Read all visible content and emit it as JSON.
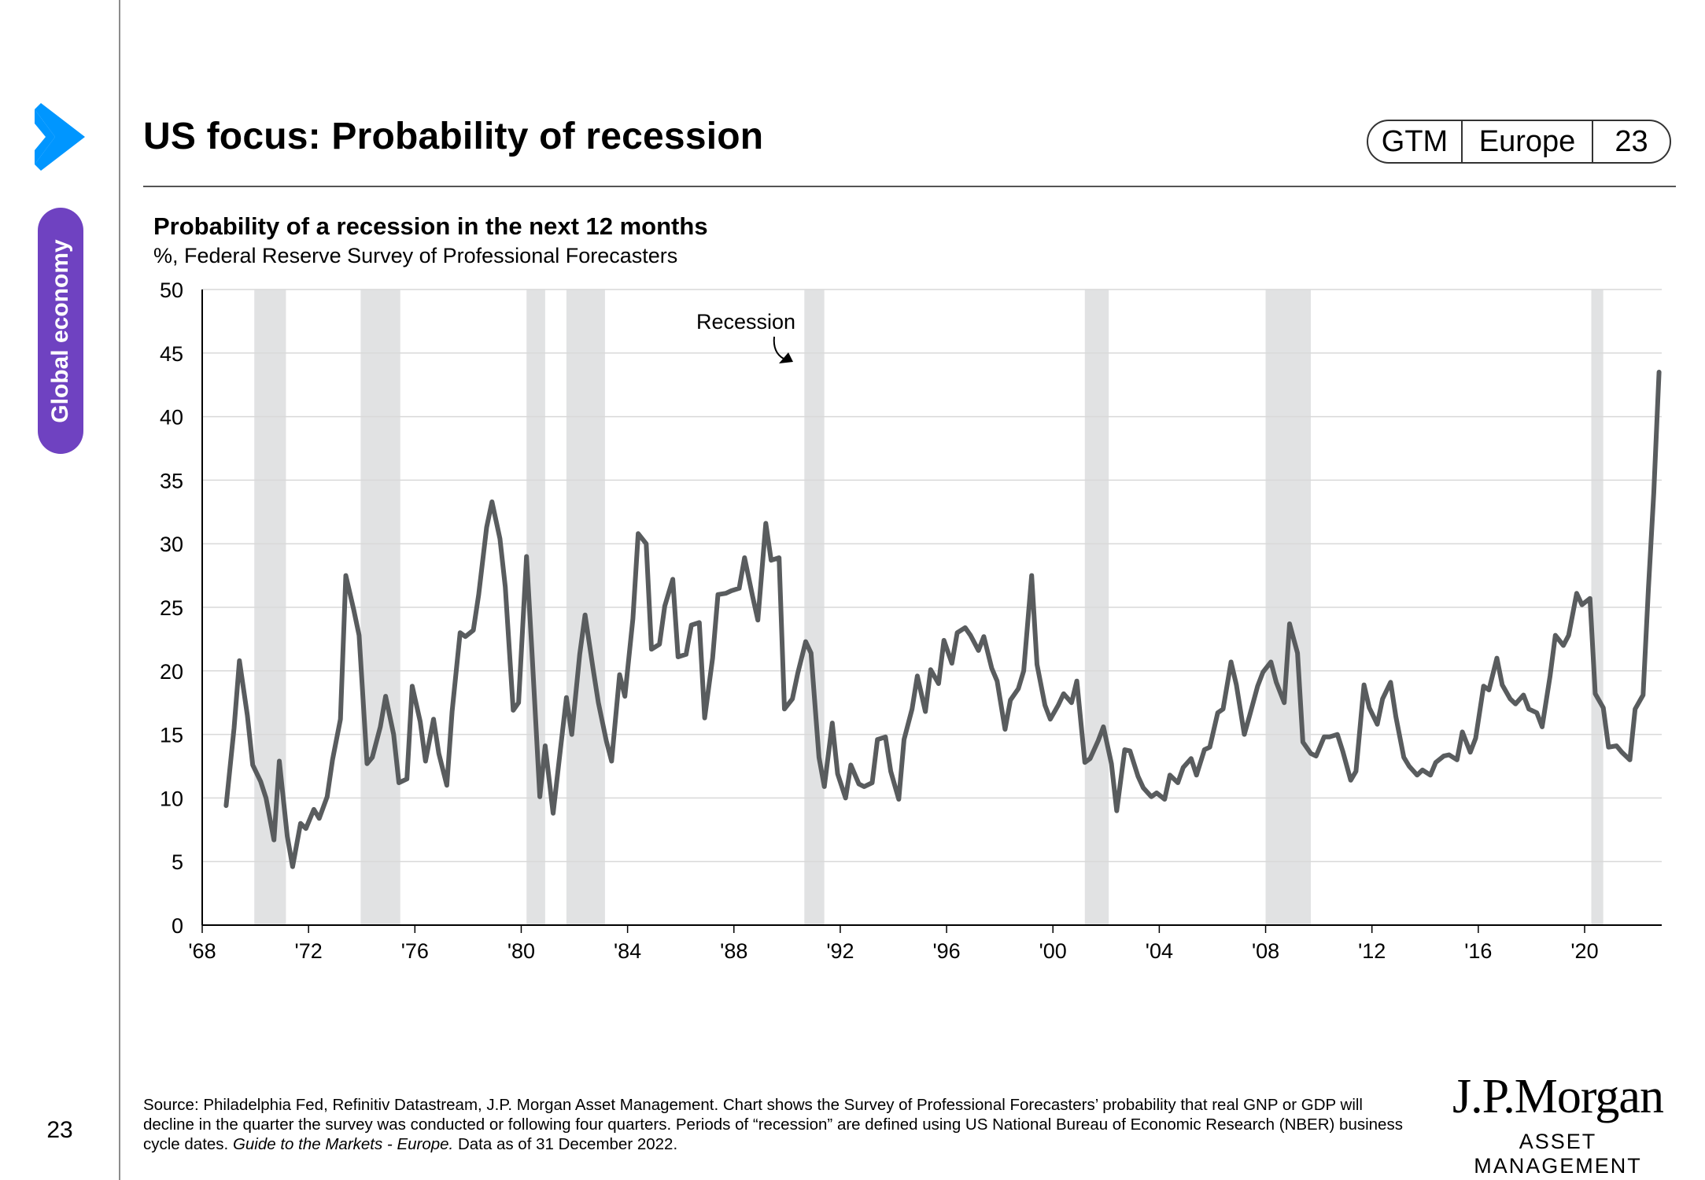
{
  "header": {
    "title": "US focus: Probability of recession"
  },
  "badge": {
    "gtm": "GTM",
    "region": "Europe",
    "page": "23"
  },
  "sidebar": {
    "section_label": "Global economy",
    "page_number": "23"
  },
  "colors": {
    "accent_blue": "#0096ff",
    "section_purple": "#6f42c1",
    "series": "#595c5e",
    "recession_band": "#e1e2e3"
  },
  "icons": {
    "chevron": "chevron-right-icon"
  },
  "chart_data": {
    "type": "line",
    "title": "Probability of a recession in the next 12 months",
    "subtitle": "%, Federal Reserve Survey of Professional Forecasters",
    "xlim": [
      1968.0,
      2022.9
    ],
    "ylim": [
      0,
      50
    ],
    "yticks": [
      0,
      5,
      10,
      15,
      20,
      25,
      30,
      35,
      40,
      45,
      50
    ],
    "xticks": [
      {
        "value": 1968,
        "label": "'68"
      },
      {
        "value": 1972,
        "label": "'72"
      },
      {
        "value": 1976,
        "label": "'76"
      },
      {
        "value": 1980,
        "label": "'80"
      },
      {
        "value": 1984,
        "label": "'84"
      },
      {
        "value": 1988,
        "label": "'88"
      },
      {
        "value": 1992,
        "label": "'92"
      },
      {
        "value": 1996,
        "label": "'96"
      },
      {
        "value": 2000,
        "label": "'00"
      },
      {
        "value": 2004,
        "label": "'04"
      },
      {
        "value": 2008,
        "label": "'08"
      },
      {
        "value": 2012,
        "label": "'12"
      },
      {
        "value": 2016,
        "label": "'16"
      },
      {
        "value": 2020,
        "label": "'20"
      }
    ],
    "grid": "horizontal",
    "recession_label": "Recession",
    "recessions": [
      [
        1969.96,
        1971.15
      ],
      [
        1973.96,
        1975.45
      ],
      [
        1980.2,
        1980.9
      ],
      [
        1981.7,
        1983.15
      ],
      [
        1990.65,
        1991.4
      ],
      [
        2001.2,
        2002.1
      ],
      [
        2008.0,
        2009.7
      ],
      [
        2020.25,
        2020.7
      ]
    ],
    "series": [
      {
        "points": [
          [
            1968.9,
            9.4
          ],
          [
            1969.2,
            15.5
          ],
          [
            1969.4,
            20.8
          ],
          [
            1969.7,
            16.5
          ],
          [
            1969.9,
            12.6
          ],
          [
            1970.2,
            11.3
          ],
          [
            1970.4,
            10.0
          ],
          [
            1970.7,
            6.7
          ],
          [
            1970.9,
            12.9
          ],
          [
            1971.2,
            7.0
          ],
          [
            1971.4,
            4.6
          ],
          [
            1971.7,
            8.0
          ],
          [
            1971.9,
            7.6
          ],
          [
            1972.2,
            9.1
          ],
          [
            1972.4,
            8.4
          ],
          [
            1972.7,
            10.1
          ],
          [
            1972.9,
            13.0
          ],
          [
            1973.2,
            16.2
          ],
          [
            1973.4,
            27.5
          ],
          [
            1973.7,
            24.8
          ],
          [
            1973.9,
            22.8
          ],
          [
            1974.2,
            12.7
          ],
          [
            1974.4,
            13.2
          ],
          [
            1974.7,
            15.6
          ],
          [
            1974.9,
            18.0
          ],
          [
            1975.2,
            15.0
          ],
          [
            1975.4,
            11.2
          ],
          [
            1975.7,
            11.5
          ],
          [
            1975.9,
            18.8
          ],
          [
            1976.2,
            16.0
          ],
          [
            1976.4,
            12.9
          ],
          [
            1976.7,
            16.2
          ],
          [
            1976.9,
            13.5
          ],
          [
            1977.2,
            11.0
          ],
          [
            1977.4,
            16.8
          ],
          [
            1977.7,
            23.0
          ],
          [
            1977.9,
            22.7
          ],
          [
            1978.2,
            23.2
          ],
          [
            1978.4,
            26.0
          ],
          [
            1978.7,
            31.3
          ],
          [
            1978.9,
            33.3
          ],
          [
            1979.2,
            30.4
          ],
          [
            1979.4,
            26.6
          ],
          [
            1979.7,
            16.9
          ],
          [
            1979.9,
            17.5
          ],
          [
            1980.2,
            29.0
          ],
          [
            1980.4,
            21.6
          ],
          [
            1980.7,
            10.1
          ],
          [
            1980.9,
            14.1
          ],
          [
            1981.2,
            8.8
          ],
          [
            1981.4,
            12.5
          ],
          [
            1981.7,
            17.9
          ],
          [
            1981.9,
            15.0
          ],
          [
            1982.2,
            21.3
          ],
          [
            1982.4,
            24.4
          ],
          [
            1982.7,
            20.2
          ],
          [
            1982.9,
            17.5
          ],
          [
            1983.2,
            14.5
          ],
          [
            1983.4,
            12.9
          ],
          [
            1983.7,
            19.7
          ],
          [
            1983.9,
            18.0
          ],
          [
            1984.2,
            24.1
          ],
          [
            1984.4,
            30.8
          ],
          [
            1984.7,
            30.0
          ],
          [
            1984.9,
            21.7
          ],
          [
            1985.2,
            22.1
          ],
          [
            1985.4,
            25.1
          ],
          [
            1985.7,
            27.2
          ],
          [
            1985.9,
            21.1
          ],
          [
            1986.2,
            21.3
          ],
          [
            1986.4,
            23.6
          ],
          [
            1986.7,
            23.8
          ],
          [
            1986.9,
            16.3
          ],
          [
            1987.2,
            21.0
          ],
          [
            1987.4,
            26.0
          ],
          [
            1987.7,
            26.1
          ],
          [
            1987.9,
            26.3
          ],
          [
            1988.2,
            26.5
          ],
          [
            1988.4,
            28.9
          ],
          [
            1988.7,
            25.9
          ],
          [
            1988.9,
            24.0
          ],
          [
            1989.2,
            31.6
          ],
          [
            1989.4,
            28.7
          ],
          [
            1989.7,
            28.9
          ],
          [
            1989.9,
            17.0
          ],
          [
            1990.2,
            17.8
          ],
          [
            1990.4,
            19.8
          ],
          [
            1990.7,
            22.3
          ],
          [
            1990.9,
            21.4
          ],
          [
            1991.2,
            13.2
          ],
          [
            1991.4,
            10.9
          ],
          [
            1991.7,
            15.9
          ],
          [
            1991.9,
            11.9
          ],
          [
            1992.2,
            10.0
          ],
          [
            1992.4,
            12.6
          ],
          [
            1992.7,
            11.1
          ],
          [
            1992.9,
            10.9
          ],
          [
            1993.2,
            11.2
          ],
          [
            1993.4,
            14.6
          ],
          [
            1993.7,
            14.8
          ],
          [
            1993.9,
            12.1
          ],
          [
            1994.2,
            9.9
          ],
          [
            1994.4,
            14.6
          ],
          [
            1994.7,
            17.0
          ],
          [
            1994.9,
            19.6
          ],
          [
            1995.2,
            16.8
          ],
          [
            1995.4,
            20.1
          ],
          [
            1995.7,
            19.0
          ],
          [
            1995.9,
            22.4
          ],
          [
            1996.2,
            20.6
          ],
          [
            1996.4,
            23.0
          ],
          [
            1996.7,
            23.4
          ],
          [
            1996.9,
            22.8
          ],
          [
            1997.2,
            21.6
          ],
          [
            1997.4,
            22.7
          ],
          [
            1997.7,
            20.2
          ],
          [
            1997.9,
            19.2
          ],
          [
            1998.2,
            15.4
          ],
          [
            1998.4,
            17.7
          ],
          [
            1998.7,
            18.6
          ],
          [
            1998.9,
            20.0
          ],
          [
            1999.2,
            27.5
          ],
          [
            1999.4,
            20.5
          ],
          [
            1999.7,
            17.3
          ],
          [
            1999.9,
            16.2
          ],
          [
            2000.2,
            17.3
          ],
          [
            2000.4,
            18.2
          ],
          [
            2000.7,
            17.5
          ],
          [
            2000.9,
            19.2
          ],
          [
            2001.2,
            12.8
          ],
          [
            2001.4,
            13.1
          ],
          [
            2001.7,
            14.5
          ],
          [
            2001.9,
            15.6
          ],
          [
            2002.2,
            12.7
          ],
          [
            2002.4,
            9.0
          ],
          [
            2002.7,
            13.8
          ],
          [
            2002.9,
            13.7
          ],
          [
            2003.2,
            11.7
          ],
          [
            2003.4,
            10.8
          ],
          [
            2003.7,
            10.1
          ],
          [
            2003.9,
            10.4
          ],
          [
            2004.2,
            9.9
          ],
          [
            2004.4,
            11.8
          ],
          [
            2004.7,
            11.2
          ],
          [
            2004.9,
            12.4
          ],
          [
            2005.2,
            13.1
          ],
          [
            2005.4,
            11.8
          ],
          [
            2005.7,
            13.8
          ],
          [
            2005.9,
            14.0
          ],
          [
            2006.2,
            16.7
          ],
          [
            2006.4,
            17.0
          ],
          [
            2006.7,
            20.7
          ],
          [
            2006.9,
            18.9
          ],
          [
            2007.2,
            15.0
          ],
          [
            2007.4,
            16.5
          ],
          [
            2007.7,
            18.8
          ],
          [
            2007.9,
            19.9
          ],
          [
            2008.2,
            20.7
          ],
          [
            2008.4,
            19.1
          ],
          [
            2008.7,
            17.5
          ],
          [
            2008.9,
            23.7
          ],
          [
            2009.2,
            21.4
          ],
          [
            2009.4,
            14.4
          ],
          [
            2009.7,
            13.5
          ],
          [
            2009.9,
            13.3
          ],
          [
            2010.2,
            14.8
          ],
          [
            2010.4,
            14.8
          ],
          [
            2010.7,
            15.0
          ],
          [
            2010.9,
            13.7
          ],
          [
            2011.2,
            11.4
          ],
          [
            2011.4,
            12.1
          ],
          [
            2011.7,
            18.9
          ],
          [
            2011.9,
            17.1
          ],
          [
            2012.2,
            15.8
          ],
          [
            2012.4,
            17.8
          ],
          [
            2012.7,
            19.1
          ],
          [
            2012.9,
            16.4
          ],
          [
            2013.2,
            13.2
          ],
          [
            2013.4,
            12.5
          ],
          [
            2013.7,
            11.8
          ],
          [
            2013.9,
            12.2
          ],
          [
            2014.2,
            11.8
          ],
          [
            2014.4,
            12.8
          ],
          [
            2014.7,
            13.3
          ],
          [
            2014.9,
            13.4
          ],
          [
            2015.2,
            13.0
          ],
          [
            2015.4,
            15.2
          ],
          [
            2015.7,
            13.6
          ],
          [
            2015.9,
            14.7
          ],
          [
            2016.2,
            18.8
          ],
          [
            2016.4,
            18.5
          ],
          [
            2016.7,
            21.0
          ],
          [
            2016.9,
            18.9
          ],
          [
            2017.2,
            17.8
          ],
          [
            2017.4,
            17.4
          ],
          [
            2017.7,
            18.1
          ],
          [
            2017.9,
            17.0
          ],
          [
            2018.2,
            16.7
          ],
          [
            2018.4,
            15.6
          ],
          [
            2018.7,
            19.6
          ],
          [
            2018.9,
            22.8
          ],
          [
            2019.2,
            22.0
          ],
          [
            2019.4,
            22.8
          ],
          [
            2019.7,
            26.1
          ],
          [
            2019.9,
            25.2
          ],
          [
            2020.2,
            25.7
          ],
          [
            2020.4,
            18.2
          ],
          [
            2020.7,
            17.1
          ],
          [
            2020.9,
            14.0
          ],
          [
            2021.2,
            14.1
          ],
          [
            2021.4,
            13.6
          ],
          [
            2021.7,
            13.0
          ],
          [
            2021.9,
            17.0
          ],
          [
            2022.2,
            18.1
          ],
          [
            2022.4,
            26.5
          ],
          [
            2022.6,
            34.0
          ],
          [
            2022.8,
            43.5
          ]
        ]
      }
    ]
  },
  "source": {
    "text": "Source: Philadelphia Fed, Refinitiv Datastream, J.P. Morgan Asset Management. Chart shows the Survey of Professional Forecasters’ probability that real GNP or GDP will decline in the quarter the survey was conducted or following four quarters. Periods of “recession” are defined using US National Bureau of Economic Research (NBER) business cycle dates. ",
    "guide": "Guide to the Markets - Europe.",
    "date": " Data as of 31 December 2022."
  },
  "logo": {
    "line1": "J.P.Morgan",
    "line2": "ASSET MANAGEMENT"
  }
}
